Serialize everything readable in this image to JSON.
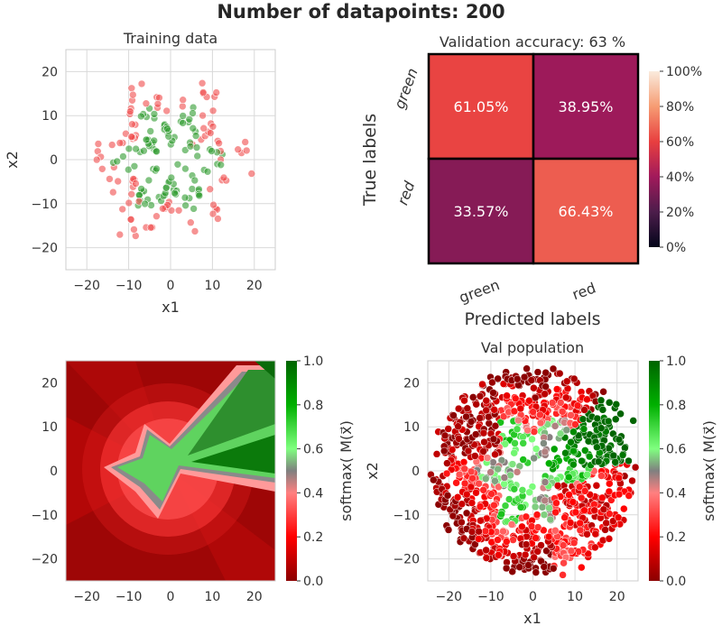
{
  "figure": {
    "title": "Number of datapoints: 200"
  },
  "colors": {
    "green_point": "#2e9b2e",
    "red_point": "#f04b4b",
    "grid": "#d9d9d9",
    "spine": "#cccccc"
  },
  "chart_data": [
    {
      "id": "training",
      "type": "scatter",
      "title": "Training data",
      "xlabel": "x1",
      "ylabel": "x2",
      "xlim": [
        -25,
        25
      ],
      "ylim": [
        -25,
        25
      ],
      "xticks": [
        -20,
        -10,
        0,
        10,
        20
      ],
      "yticks": [
        -20,
        -10,
        0,
        10,
        20
      ],
      "grid": true,
      "n_points": 200,
      "series": [
        {
          "class": "green",
          "color": "#2e9b2e"
        },
        {
          "class": "red",
          "color": "#f04b4b"
        }
      ]
    },
    {
      "id": "confusion",
      "type": "heatmap",
      "title": "Validation accuracy: 63 %",
      "xlabel": "Predicted labels",
      "ylabel": "True labels",
      "x_categories": [
        "green",
        "red"
      ],
      "y_categories": [
        "green",
        "red"
      ],
      "values": [
        [
          61.05,
          38.95
        ],
        [
          33.57,
          66.43
        ]
      ],
      "cell_labels": [
        [
          "61.05%",
          "38.95%"
        ],
        [
          "33.57%",
          "66.43%"
        ]
      ],
      "colorbar": {
        "range": [
          0,
          100
        ],
        "ticks": [
          "0%",
          "20%",
          "40%",
          "60%",
          "80%",
          "100%"
        ]
      }
    },
    {
      "id": "decision",
      "type": "heatmap",
      "xlim": [
        -25,
        25
      ],
      "ylim": [
        -25,
        25
      ],
      "xticks": [
        -20,
        -10,
        0,
        10,
        20
      ],
      "yticks": [
        -20,
        -10,
        0,
        10,
        20
      ],
      "colorbar": {
        "label": "softmax( M(x⃗)",
        "range": [
          0,
          1
        ],
        "ticks": [
          "0.0",
          "0.2",
          "0.4",
          "0.6",
          "0.8",
          "1.0"
        ]
      }
    },
    {
      "id": "valpop",
      "type": "scatter",
      "title": "Val population",
      "xlabel": "x1",
      "ylabel": "x2",
      "xlim": [
        -25,
        25
      ],
      "ylim": [
        -25,
        25
      ],
      "xticks": [
        -20,
        -10,
        0,
        10,
        20
      ],
      "yticks": [
        -20,
        -10,
        0,
        10,
        20
      ],
      "grid": true,
      "colorbar": {
        "label": "softmax( M(x⃗)",
        "range": [
          0,
          1
        ],
        "ticks": [
          "0.0",
          "0.2",
          "0.4",
          "0.6",
          "0.8",
          "1.0"
        ]
      }
    }
  ]
}
